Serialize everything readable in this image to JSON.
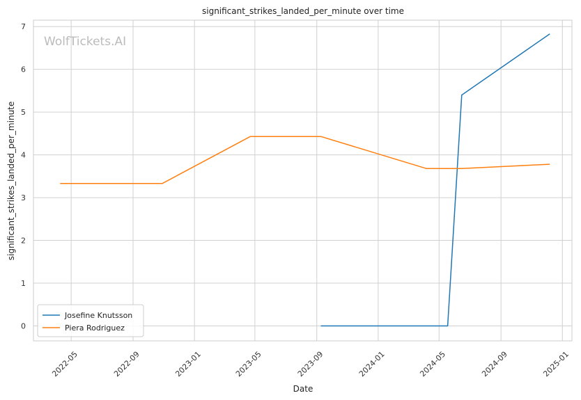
{
  "chart_data": {
    "type": "line",
    "title": "significant_strikes_landed_per_minute over time",
    "xlabel": "Date",
    "ylabel": "significant_strikes_landed_per_minute",
    "watermark": "WolfTickets.AI",
    "x_ticks": [
      "2022-05",
      "2022-09",
      "2023-01",
      "2023-05",
      "2023-09",
      "2024-01",
      "2024-05",
      "2024-09",
      "2025-01"
    ],
    "y_ticks": [
      0,
      1,
      2,
      3,
      4,
      5,
      6,
      7
    ],
    "xlim": [
      "2022-02-15",
      "2025-01-20"
    ],
    "ylim": [
      -0.35,
      7.15
    ],
    "grid": true,
    "legend_position": "lower-left",
    "series": [
      {
        "name": "Josefine Knutsson",
        "color": "#1f77b4",
        "points": [
          {
            "x": "2023-09-09",
            "y": 0.0
          },
          {
            "x": "2024-05-18",
            "y": 0.0
          },
          {
            "x": "2024-06-15",
            "y": 5.4
          },
          {
            "x": "2024-12-07",
            "y": 6.83
          }
        ]
      },
      {
        "name": "Piera Rodriguez",
        "color": "#ff7f0e",
        "points": [
          {
            "x": "2022-04-09",
            "y": 3.33
          },
          {
            "x": "2022-10-29",
            "y": 3.33
          },
          {
            "x": "2023-04-22",
            "y": 4.43
          },
          {
            "x": "2023-09-09",
            "y": 4.43
          },
          {
            "x": "2024-04-06",
            "y": 3.68
          },
          {
            "x": "2024-06-15",
            "y": 3.68
          },
          {
            "x": "2024-12-07",
            "y": 3.78
          }
        ]
      }
    ]
  }
}
